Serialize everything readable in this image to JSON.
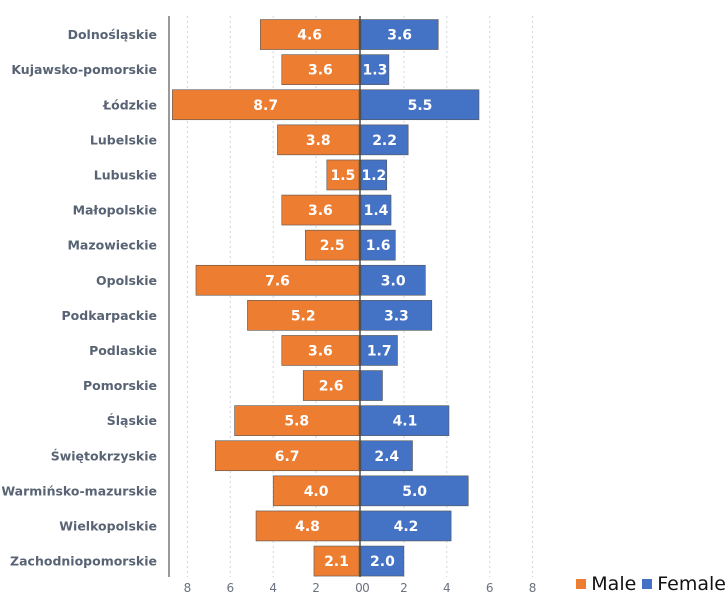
{
  "chart_data": {
    "type": "bar",
    "orientation": "horizontal-butterfly",
    "categories": [
      "Dolnośląskie",
      "Kujawsko-pomorskie",
      "Łódzkie",
      "Lubelskie",
      "Lubuskie",
      "Małopolskie",
      "Mazowieckie",
      "Opolskie",
      "Podkarpackie",
      "Podlaskie",
      "Pomorskie",
      "Śląskie",
      "Świętokrzyskie",
      "Warmińsko-mazurskie",
      "Wielkopolskie",
      "Zachodniopomorskie"
    ],
    "series": [
      {
        "name": "Male",
        "color": "#ED7D31",
        "side": "left",
        "values": [
          4.6,
          3.6,
          8.7,
          3.8,
          1.5,
          3.6,
          2.5,
          7.6,
          5.2,
          3.6,
          2.6,
          5.8,
          6.7,
          4.0,
          4.8,
          2.1
        ],
        "labels": [
          "4.6",
          "3.6",
          "8.7",
          "3.8",
          "1.5",
          "3.6",
          "2.5",
          "7.6",
          "5.2",
          "3.6",
          "2.6",
          "5.8",
          "6.7",
          "4.0",
          "4.8",
          "2.1"
        ]
      },
      {
        "name": "Female",
        "color": "#4472C4",
        "side": "right",
        "values": [
          3.6,
          1.3,
          5.5,
          2.2,
          1.2,
          1.4,
          1.6,
          3.0,
          3.3,
          1.7,
          1.0,
          4.1,
          2.4,
          5.0,
          4.2,
          2.0
        ],
        "labels": [
          "3.6",
          "1.3",
          "5.5",
          "2.2",
          "1.2",
          "1.4",
          "1.6",
          "3.0",
          "3.3",
          "1.7",
          "",
          "4.1",
          "2.4",
          "5.0",
          "4.2",
          "2.0"
        ]
      }
    ],
    "xlim": [
      -8.7,
      8.7
    ],
    "x_ticks_left": [
      "8",
      "6",
      "4",
      "2",
      "0"
    ],
    "x_ticks_right": [
      "0",
      "2",
      "4",
      "6",
      "8"
    ],
    "grid": true,
    "legend_position": "bottom-right"
  },
  "legend": {
    "male_label": "Male",
    "female_label": "Female"
  }
}
